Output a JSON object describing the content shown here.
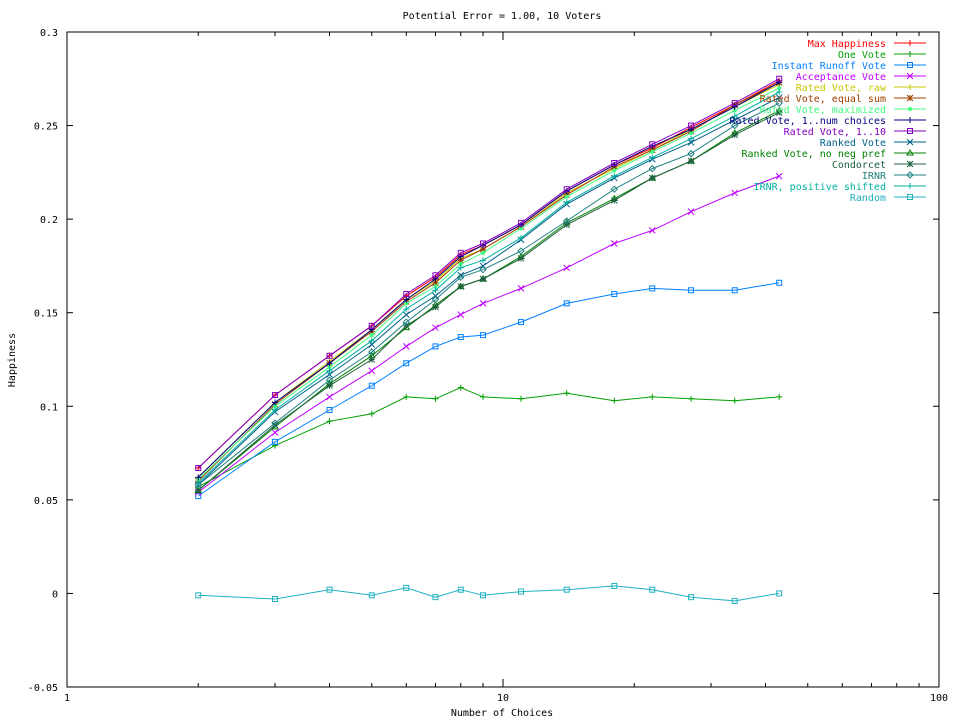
{
  "chart_data": {
    "type": "line",
    "title": "Potential Error = 1.00, 10 Voters",
    "xlabel": "Number of Choices",
    "ylabel": "Happiness",
    "xscale": "log",
    "xlim": [
      1,
      100
    ],
    "ylim": [
      -0.05,
      0.3
    ],
    "xtick_labels": [
      "1",
      "10",
      "100"
    ],
    "ytick_labels": [
      "-0.05",
      "0",
      "0.05",
      "0.1",
      "0.15",
      "0.2",
      "0.25",
      "0.3"
    ],
    "grid": false,
    "legend_position": "top-right",
    "x": [
      2,
      3,
      4,
      5,
      6,
      7,
      8,
      9,
      11,
      14,
      18,
      22,
      27,
      34,
      43
    ],
    "series": [
      {
        "name": "Max Happiness",
        "color": "#ff0000",
        "marker": "plus",
        "values": [
          0.067,
          0.106,
          0.127,
          0.143,
          0.159,
          0.169,
          0.181,
          0.186,
          0.197,
          0.215,
          0.229,
          0.238,
          0.249,
          0.261,
          0.274
        ]
      },
      {
        "name": "One Vote",
        "color": "#00a000",
        "marker": "plus",
        "values": [
          0.057,
          0.079,
          0.092,
          0.096,
          0.105,
          0.104,
          0.11,
          0.105,
          0.104,
          0.107,
          0.103,
          0.105,
          0.104,
          0.103,
          0.105
        ]
      },
      {
        "name": "Instant Runoff Vote",
        "color": "#0080ff",
        "marker": "square",
        "values": [
          0.052,
          0.081,
          0.098,
          0.111,
          0.123,
          0.132,
          0.137,
          0.138,
          0.145,
          0.155,
          0.16,
          0.163,
          0.162,
          0.162,
          0.166
        ]
      },
      {
        "name": "Acceptance Vote",
        "color": "#c000ff",
        "marker": "x",
        "values": [
          0.054,
          0.086,
          0.105,
          0.119,
          0.132,
          0.142,
          0.149,
          0.155,
          0.163,
          0.174,
          0.187,
          0.194,
          0.204,
          0.214,
          0.223
        ]
      },
      {
        "name": "Rated Vote, raw",
        "color": "#c8c800",
        "marker": "plus",
        "values": [
          0.062,
          0.102,
          0.124,
          0.141,
          0.157,
          0.167,
          0.179,
          0.184,
          0.196,
          0.214,
          0.227,
          0.237,
          0.248,
          0.26,
          0.272
        ]
      },
      {
        "name": "Rated Vote, equal sum",
        "color": "#a04000",
        "marker": "star",
        "values": [
          0.06,
          0.101,
          0.123,
          0.14,
          0.156,
          0.166,
          0.178,
          0.184,
          0.196,
          0.213,
          0.228,
          0.237,
          0.247,
          0.261,
          0.273
        ]
      },
      {
        "name": "Rated Vote, maximized",
        "color": "#40ff80",
        "marker": "dot",
        "values": [
          0.061,
          0.1,
          0.121,
          0.138,
          0.155,
          0.164,
          0.176,
          0.182,
          0.195,
          0.212,
          0.226,
          0.236,
          0.246,
          0.258,
          0.27
        ]
      },
      {
        "name": "Rated Vote, 1..num choices",
        "color": "#000080",
        "marker": "plus",
        "values": [
          0.062,
          0.102,
          0.123,
          0.141,
          0.157,
          0.168,
          0.18,
          0.186,
          0.197,
          0.215,
          0.229,
          0.239,
          0.248,
          0.26,
          0.273
        ]
      },
      {
        "name": "Rated Vote, 1..10",
        "color": "#8000c0",
        "marker": "square",
        "values": [
          0.067,
          0.106,
          0.127,
          0.143,
          0.16,
          0.17,
          0.182,
          0.187,
          0.198,
          0.216,
          0.23,
          0.24,
          0.25,
          0.262,
          0.275
        ]
      },
      {
        "name": "Ranked Vote",
        "color": "#00608c",
        "marker": "x",
        "values": [
          0.058,
          0.097,
          0.117,
          0.133,
          0.149,
          0.159,
          0.17,
          0.175,
          0.189,
          0.208,
          0.222,
          0.232,
          0.241,
          0.253,
          0.265
        ]
      },
      {
        "name": "Ranked Vote, no neg pref",
        "color": "#008000",
        "marker": "triangle",
        "values": [
          0.055,
          0.089,
          0.112,
          0.127,
          0.142,
          0.154,
          0.164,
          0.168,
          0.18,
          0.198,
          0.211,
          0.222,
          0.231,
          0.246,
          0.258
        ]
      },
      {
        "name": "Condorcet",
        "color": "#206040",
        "marker": "star",
        "values": [
          0.055,
          0.09,
          0.111,
          0.125,
          0.143,
          0.153,
          0.164,
          0.168,
          0.179,
          0.197,
          0.21,
          0.222,
          0.231,
          0.245,
          0.257
        ]
      },
      {
        "name": "IRNR",
        "color": "#208080",
        "marker": "diamond",
        "values": [
          0.058,
          0.091,
          0.114,
          0.129,
          0.145,
          0.157,
          0.169,
          0.173,
          0.183,
          0.199,
          0.216,
          0.227,
          0.235,
          0.25,
          0.262
        ]
      },
      {
        "name": "IRNR, positive shifted",
        "color": "#00b0a0",
        "marker": "plus",
        "values": [
          0.059,
          0.098,
          0.119,
          0.135,
          0.152,
          0.162,
          0.174,
          0.178,
          0.19,
          0.209,
          0.223,
          0.233,
          0.243,
          0.255,
          0.268
        ]
      },
      {
        "name": "Random",
        "color": "#20b0c0",
        "marker": "square",
        "values": [
          -0.001,
          -0.003,
          0.002,
          -0.001,
          0.003,
          -0.002,
          0.002,
          -0.001,
          0.001,
          0.002,
          0.004,
          0.002,
          -0.002,
          -0.004,
          0.0
        ]
      }
    ]
  }
}
